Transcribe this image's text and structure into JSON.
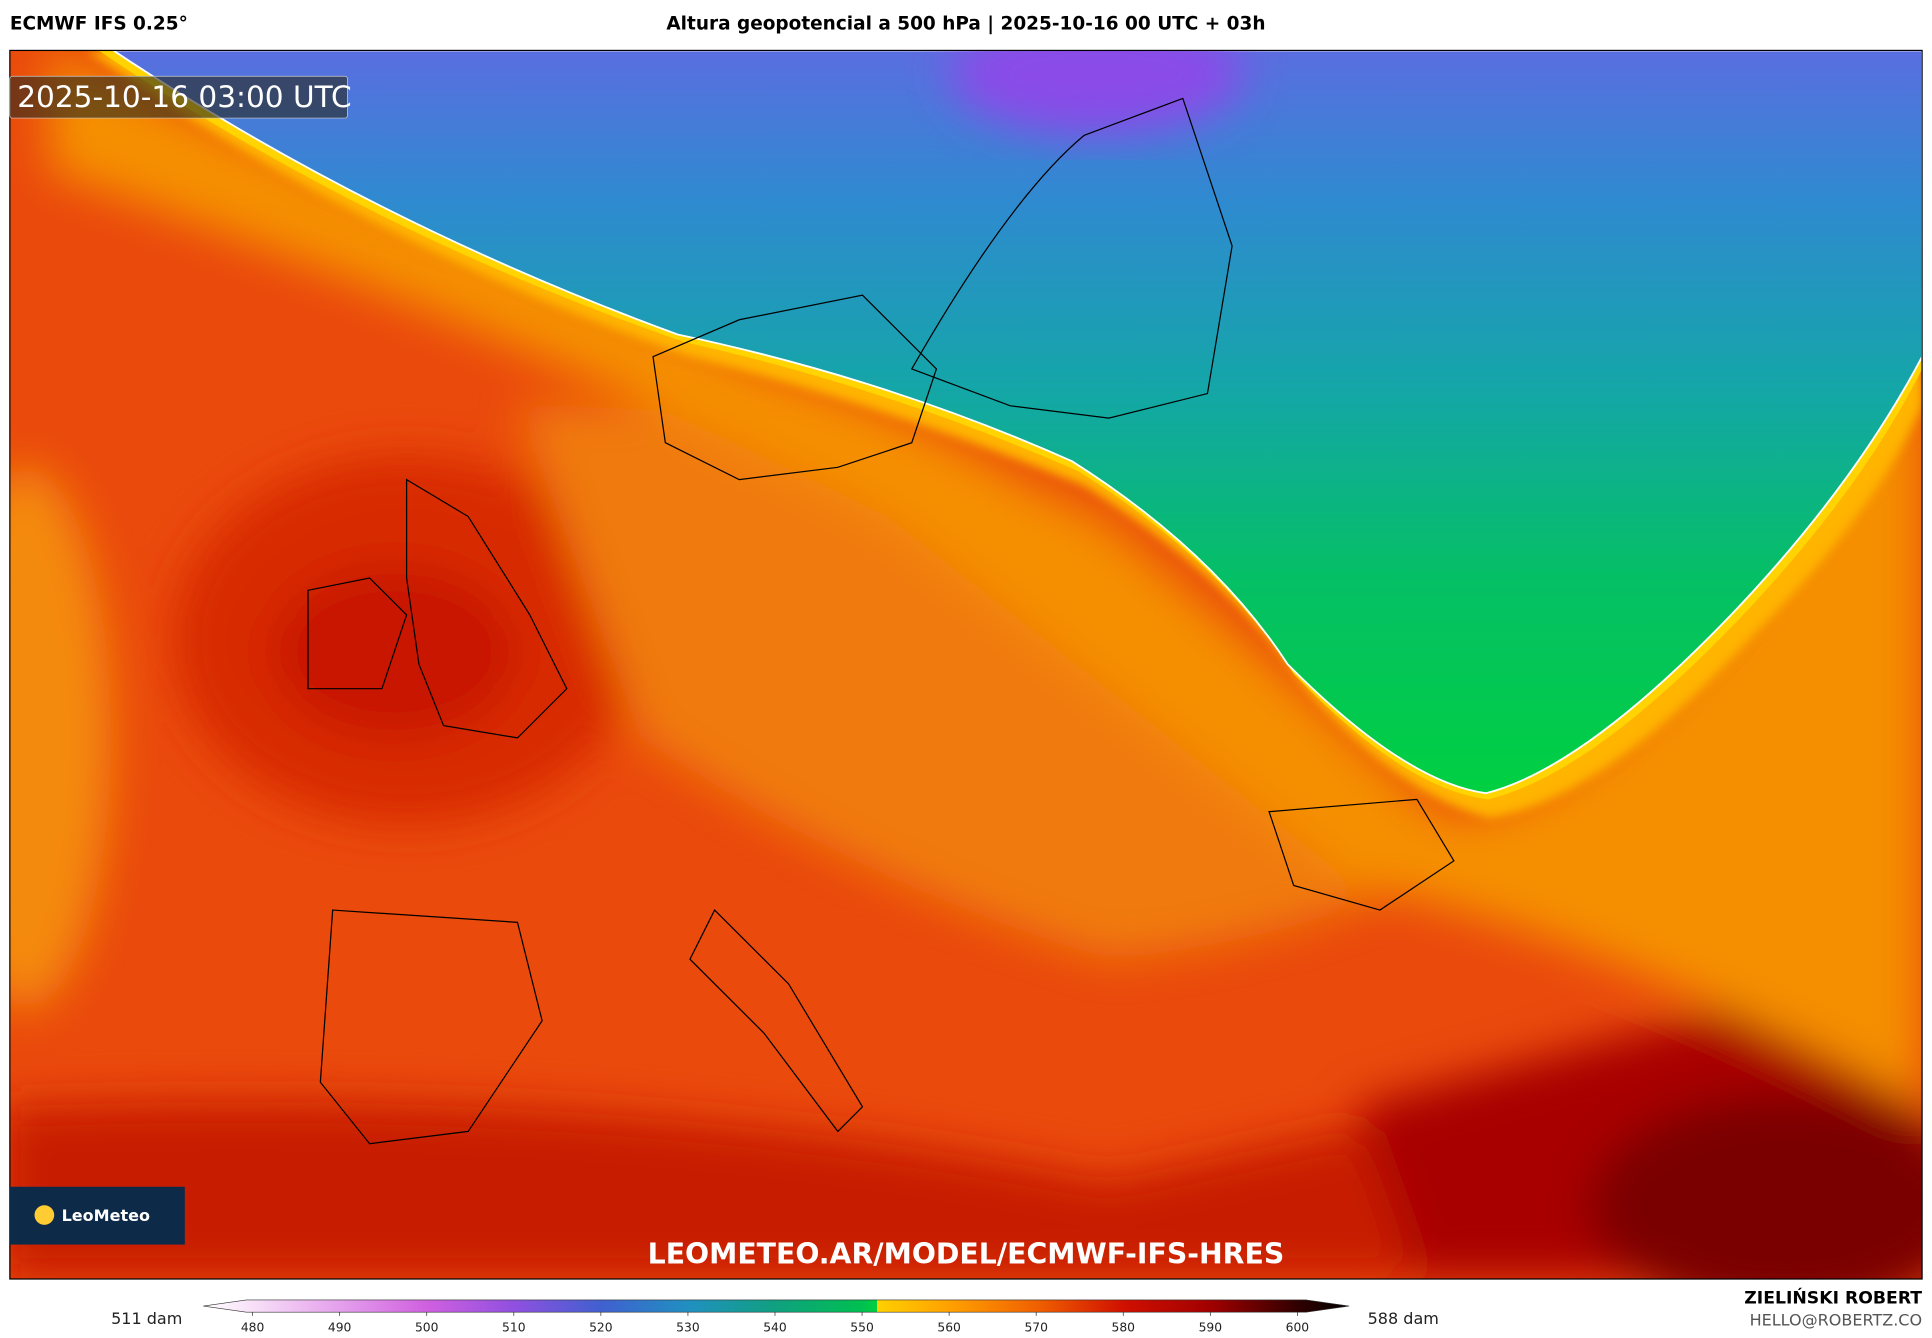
{
  "header": {
    "model": "ECMWF IFS 0.25°",
    "title": "Altura geopotencial a 500 hPa | 2025-10-16 00 UTC + 03h"
  },
  "map": {
    "timestamp": "2025-10-16 03:00 UTC",
    "logo": "LeoMeteo",
    "url": "LEOMETEO.AR/MODEL/ECMWF-IFS-HRES"
  },
  "colorbar": {
    "min_label": "511 dam",
    "max_label": "588 dam",
    "ticks": [
      480,
      490,
      500,
      510,
      520,
      530,
      540,
      550,
      560,
      570,
      580,
      590,
      600
    ]
  },
  "footer": {
    "author": "ZIELIŃSKI ROBERT",
    "email": "HELLO@ROBERTZ.CO"
  }
}
